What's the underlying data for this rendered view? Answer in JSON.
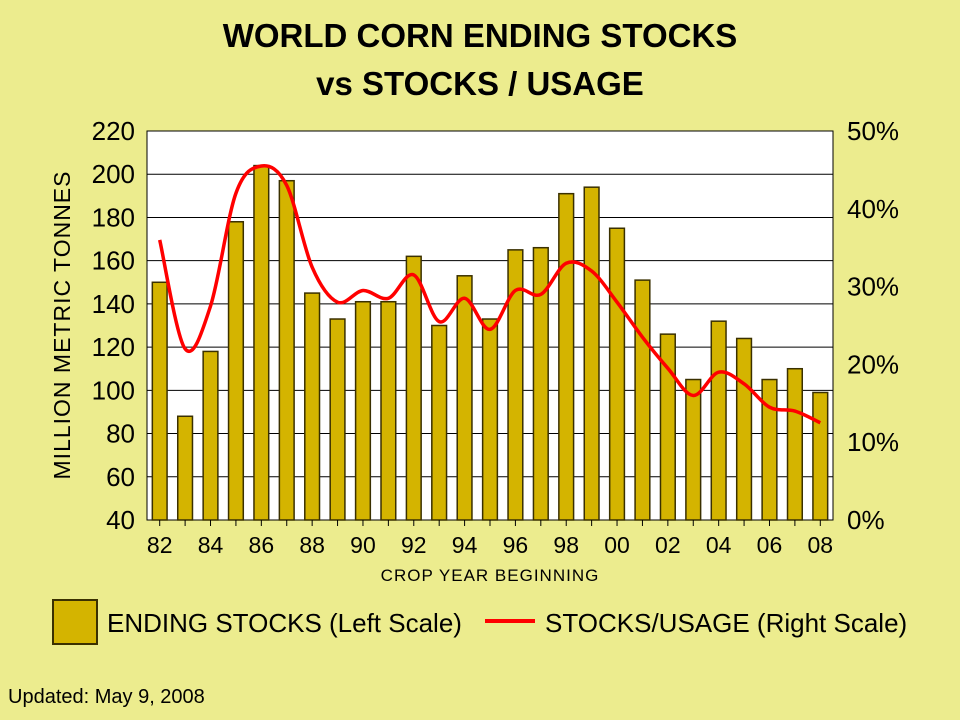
{
  "colors": {
    "background": "#ecec8e",
    "plot_background": "#ffffff",
    "bar_fill": "#d4b400",
    "bar_stroke": "#3a3000",
    "line": "#ff0000",
    "grid": "#000000"
  },
  "chart_data": {
    "type": "bar",
    "title": "WORLD CORN ENDING STOCKS",
    "subtitle": "vs STOCKS / USAGE",
    "xlabel": "CROP YEAR BEGINNING",
    "ylabel": "MILLION METRIC TONNES",
    "ylim": [
      40,
      220
    ],
    "yticks": [
      40,
      60,
      80,
      100,
      120,
      140,
      160,
      180,
      200,
      220
    ],
    "y2lim": [
      0,
      50
    ],
    "y2ticks": [
      0,
      10,
      20,
      30,
      40,
      50
    ],
    "y2ticklabels": [
      "0%",
      "10%",
      "20%",
      "30%",
      "40%",
      "50%"
    ],
    "grid": true,
    "legend_position": "bottom",
    "categories": [
      "82",
      "83",
      "84",
      "85",
      "86",
      "87",
      "88",
      "89",
      "90",
      "91",
      "92",
      "93",
      "94",
      "95",
      "96",
      "97",
      "98",
      "99",
      "00",
      "01",
      "02",
      "03",
      "04",
      "05",
      "06",
      "07",
      "08"
    ],
    "xticklabels": [
      "82",
      "84",
      "86",
      "88",
      "90",
      "92",
      "94",
      "96",
      "98",
      "00",
      "02",
      "04",
      "06",
      "08"
    ],
    "series": [
      {
        "name": "ENDING STOCKS (Left Scale)",
        "type": "bar",
        "axis": "left",
        "values": [
          150,
          88,
          118,
          178,
          204,
          197,
          145,
          133,
          141,
          141,
          162,
          130,
          153,
          133,
          165,
          166,
          191,
          194,
          175,
          151,
          126,
          105,
          132,
          124,
          105,
          110,
          99
        ]
      },
      {
        "name": "STOCKS/USAGE (Right Scale)",
        "type": "line",
        "axis": "right",
        "values": [
          36,
          22,
          27.5,
          42,
          45.5,
          43,
          32.5,
          28,
          29.5,
          28.5,
          31.5,
          25.5,
          28.5,
          24.5,
          29.5,
          29,
          33,
          32,
          28,
          23.5,
          19.5,
          16,
          19,
          17.5,
          14.5,
          14,
          12.5
        ]
      }
    ]
  },
  "footer": {
    "updated": "Updated: May 9, 2008"
  }
}
